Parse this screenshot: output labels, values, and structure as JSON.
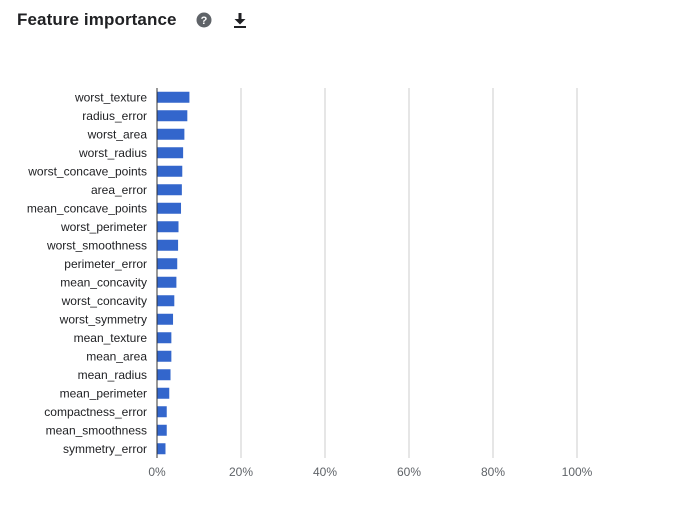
{
  "header": {
    "title": "Feature importance",
    "help_icon": "help-circle-icon",
    "download_icon": "download-icon"
  },
  "colors": {
    "bar": "#3366cc",
    "grid": "#cccccc",
    "axis": "#333333"
  },
  "chart_data": {
    "type": "bar",
    "orientation": "horizontal",
    "title": "",
    "xlabel": "",
    "ylabel": "",
    "xlim": [
      0,
      100
    ],
    "x_ticks": [
      0,
      20,
      40,
      60,
      80,
      100
    ],
    "x_tick_labels": [
      "0%",
      "20%",
      "40%",
      "60%",
      "80%",
      "100%"
    ],
    "grid": true,
    "legend": "none",
    "categories": [
      "worst_texture",
      "radius_error",
      "worst_area",
      "worst_radius",
      "worst_concave_points",
      "area_error",
      "mean_concave_points",
      "worst_perimeter",
      "worst_smoothness",
      "perimeter_error",
      "mean_concavity",
      "worst_concavity",
      "worst_symmetry",
      "mean_texture",
      "mean_area",
      "mean_radius",
      "mean_perimeter",
      "compactness_error",
      "mean_smoothness",
      "symmetry_error"
    ],
    "values": [
      7.6,
      7.1,
      6.4,
      6.1,
      5.9,
      5.8,
      5.6,
      5.0,
      4.9,
      4.7,
      4.5,
      4.0,
      3.7,
      3.3,
      3.3,
      3.1,
      2.8,
      2.2,
      2.2,
      1.9
    ]
  }
}
